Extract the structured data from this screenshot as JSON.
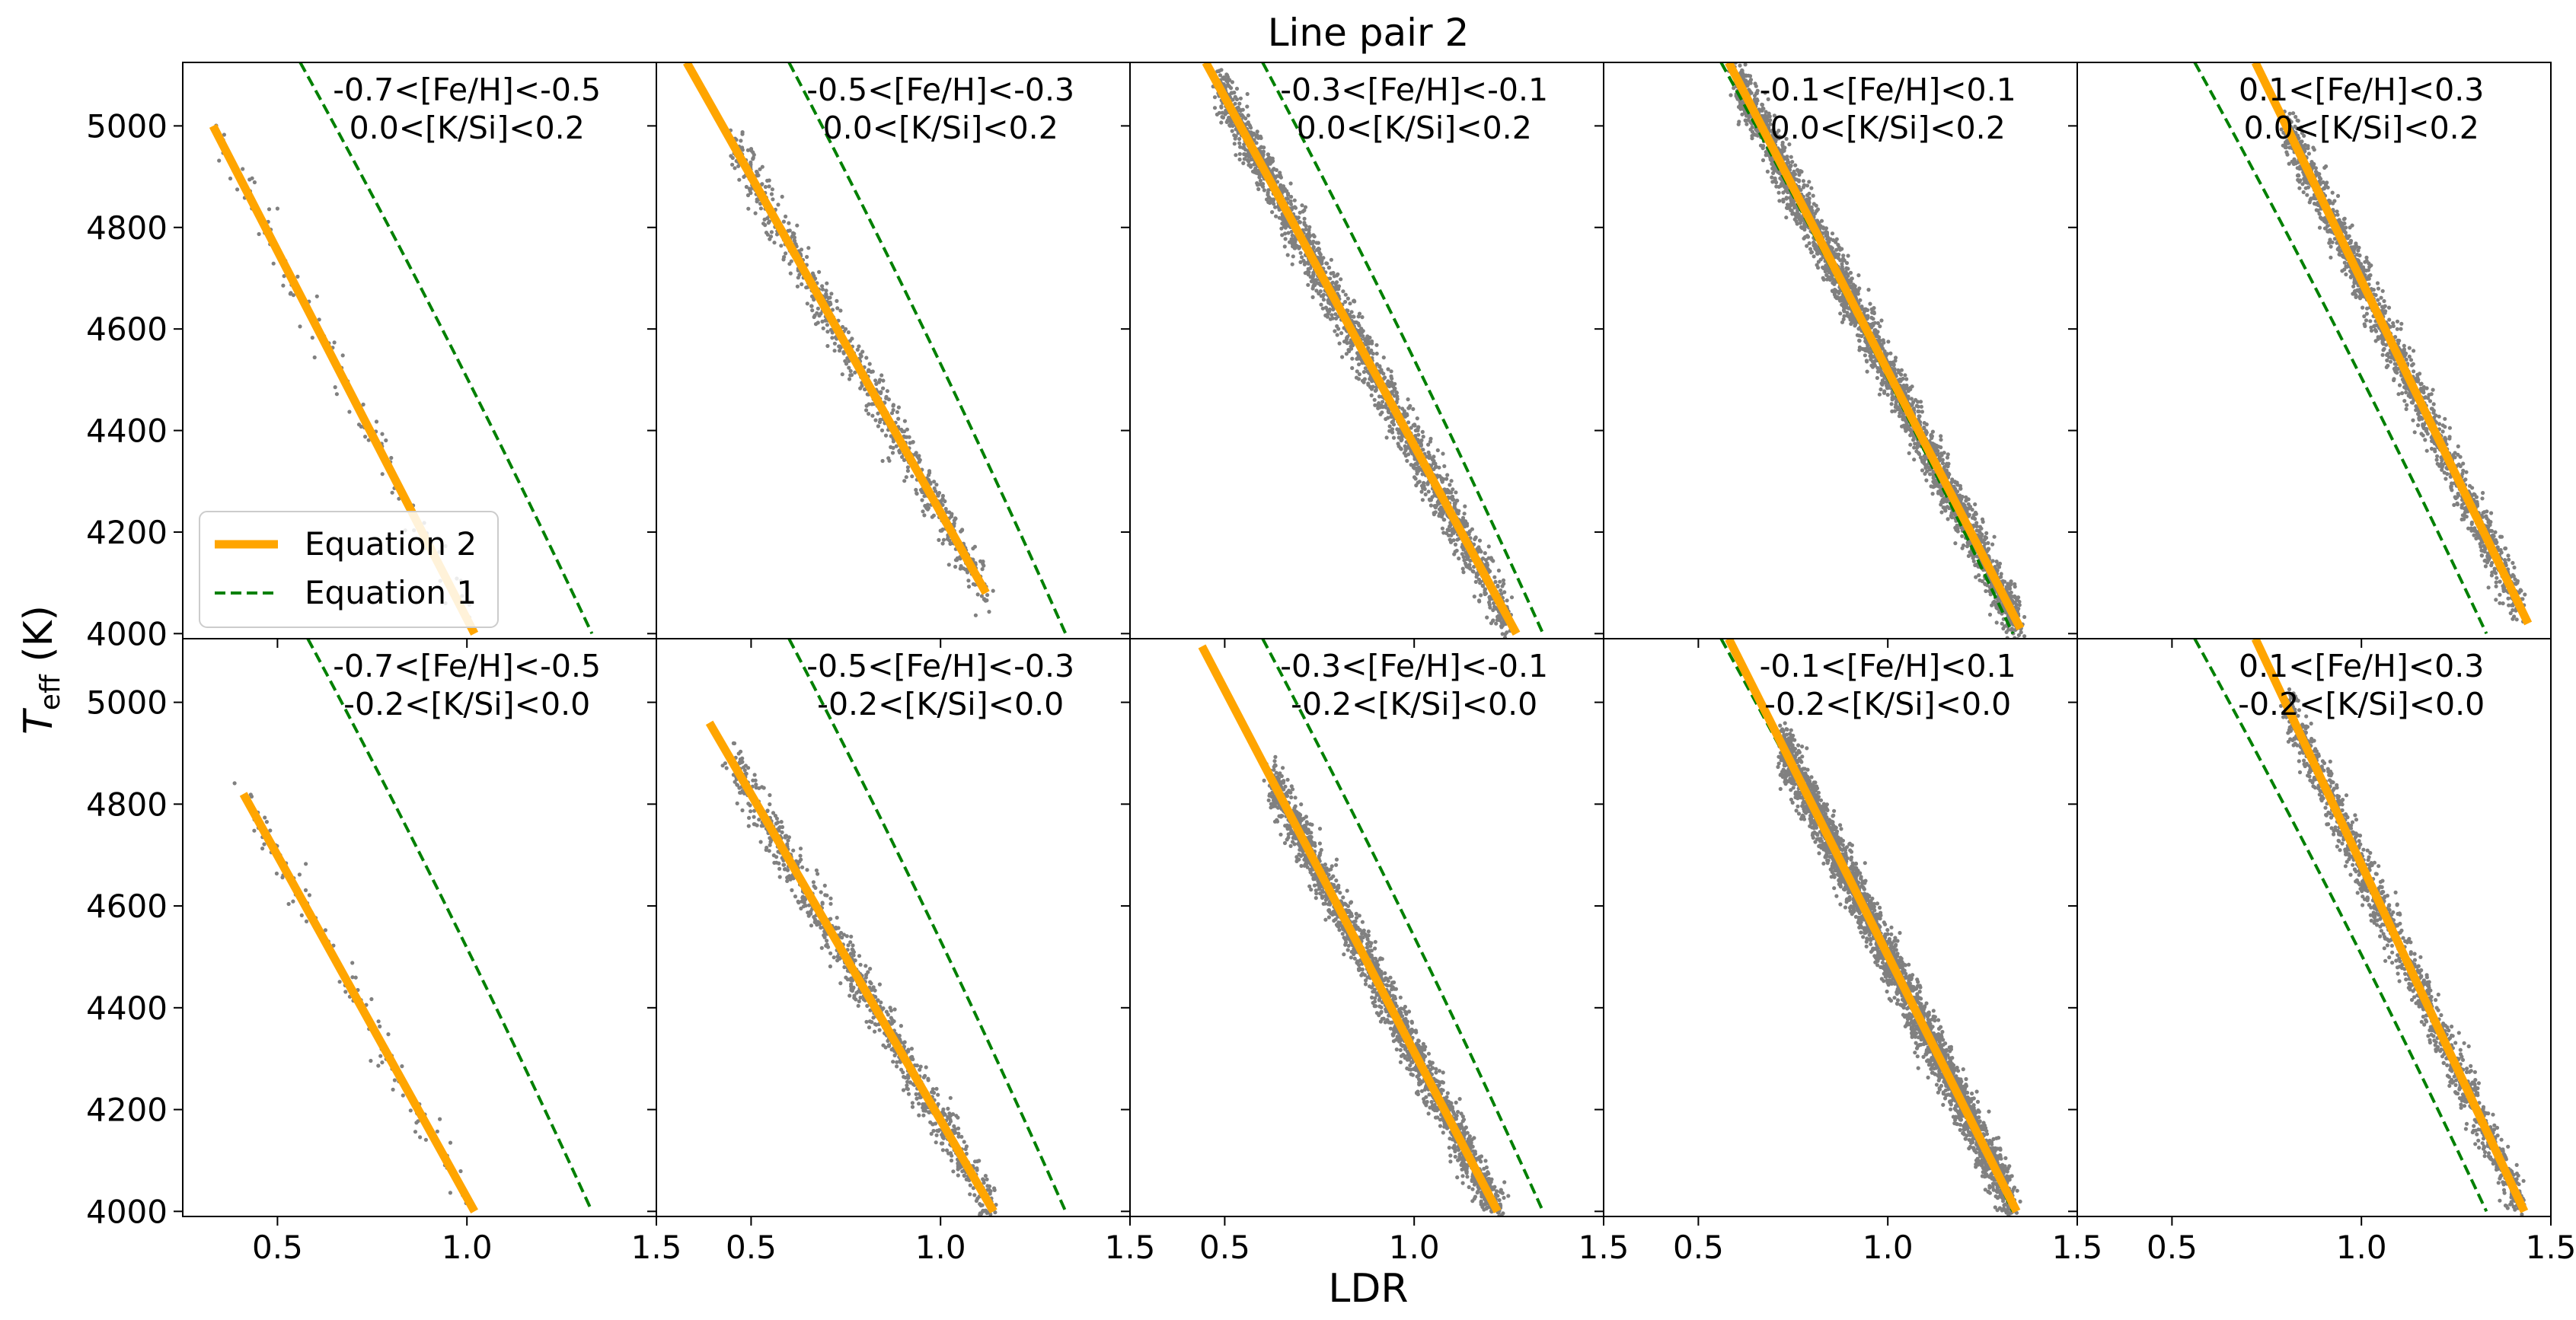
{
  "title": "Line pair 2",
  "xlabel": "LDR",
  "ylabel_main": "T",
  "ylabel_sub": "eff",
  "ylabel_unit": " (K)",
  "legend": [
    {
      "label": "Equation 2",
      "color": "#ffa500",
      "style": "solid"
    },
    {
      "label": "Equation 1",
      "color": "#008000",
      "style": "dashed"
    }
  ],
  "xticks": [
    "0.5",
    "1.0",
    "1.5"
  ],
  "yticks": [
    "4000",
    "4200",
    "4400",
    "4600",
    "4800",
    "5000"
  ],
  "chart_data": {
    "type": "scatter",
    "title": "Line pair 2",
    "xlabel": "LDR",
    "ylabel": "Teff (K)",
    "xlim": [
      0.25,
      1.5
    ],
    "ylim": [
      3990,
      5125
    ],
    "scatter_color": "#808080",
    "panels": [
      {
        "row": 0,
        "col": 0,
        "label1": "-0.7<[Fe/H]<-0.5",
        "label2": "0.0<[K/Si]<0.2",
        "eq2": [
          [
            0.33,
            5000
          ],
          [
            1.02,
            4000
          ]
        ],
        "eq1": [
          [
            0.56,
            5125
          ],
          [
            1.33,
            4000
          ]
        ],
        "n_points": 110,
        "ldr_range": [
          0.33,
          1.0
        ]
      },
      {
        "row": 0,
        "col": 1,
        "label1": "-0.5<[Fe/H]<-0.3",
        "label2": "0.0<[K/Si]<0.2",
        "eq2": [
          [
            0.33,
            5125
          ],
          [
            1.12,
            4080
          ]
        ],
        "eq1": [
          [
            0.6,
            5125
          ],
          [
            1.33,
            4000
          ]
        ],
        "n_points": 700,
        "ldr_range": [
          0.45,
          1.12
        ]
      },
      {
        "row": 0,
        "col": 2,
        "label1": "-0.3<[Fe/H]<-0.1",
        "label2": "0.0<[K/Si]<0.2",
        "eq2": [
          [
            0.45,
            5125
          ],
          [
            1.27,
            4000
          ]
        ],
        "eq1": [
          [
            0.6,
            5125
          ],
          [
            1.34,
            4000
          ]
        ],
        "n_points": 1900,
        "ldr_range": [
          0.48,
          1.25
        ]
      },
      {
        "row": 0,
        "col": 3,
        "label1": "-0.1<[Fe/H]<0.1",
        "label2": "0.0<[K/Si]<0.2",
        "eq2": [
          [
            0.58,
            5125
          ],
          [
            1.35,
            4010
          ]
        ],
        "eq1": [
          [
            0.56,
            5125
          ],
          [
            1.33,
            4000
          ]
        ],
        "n_points": 2600,
        "ldr_range": [
          0.6,
          1.35
        ]
      },
      {
        "row": 0,
        "col": 4,
        "label1": "0.1<[Fe/H]<0.3",
        "label2": "0.0<[K/Si]<0.2",
        "eq2": [
          [
            0.72,
            5125
          ],
          [
            1.44,
            4020
          ]
        ],
        "eq1": [
          [
            0.56,
            5125
          ],
          [
            1.33,
            4000
          ]
        ],
        "n_points": 1500,
        "ldr_range": [
          0.8,
          1.42
        ]
      },
      {
        "row": 1,
        "col": 0,
        "label1": "-0.7<[Fe/H]<-0.5",
        "label2": "-0.2<[K/Si]<0.0",
        "eq2": [
          [
            0.41,
            4820
          ],
          [
            1.02,
            4000
          ]
        ],
        "eq1": [
          [
            0.58,
            5125
          ],
          [
            1.33,
            4000
          ]
        ],
        "n_points": 110,
        "ldr_range": [
          0.41,
          1.0
        ]
      },
      {
        "row": 1,
        "col": 1,
        "label1": "-0.5<[Fe/H]<-0.3",
        "label2": "-0.2<[K/Si]<0.0",
        "eq2": [
          [
            0.39,
            4960
          ],
          [
            1.14,
            4000
          ]
        ],
        "eq1": [
          [
            0.6,
            5125
          ],
          [
            1.33,
            4000
          ]
        ],
        "n_points": 900,
        "ldr_range": [
          0.45,
          1.15
        ]
      },
      {
        "row": 1,
        "col": 2,
        "label1": "-0.3<[Fe/H]<-0.1",
        "label2": "-0.2<[K/Si]<0.0",
        "eq2": [
          [
            0.44,
            5110
          ],
          [
            1.22,
            4000
          ]
        ],
        "eq1": [
          [
            0.6,
            5125
          ],
          [
            1.34,
            4000
          ]
        ],
        "n_points": 1700,
        "ldr_range": [
          0.62,
          1.24
        ]
      },
      {
        "row": 1,
        "col": 3,
        "label1": "-0.1<[Fe/H]<0.1",
        "label2": "-0.2<[K/Si]<0.0",
        "eq2": [
          [
            0.58,
            5125
          ],
          [
            1.34,
            4000
          ]
        ],
        "eq1": [
          [
            0.56,
            5125
          ],
          [
            1.33,
            4000
          ]
        ],
        "n_points": 2800,
        "ldr_range": [
          0.72,
          1.33
        ]
      },
      {
        "row": 1,
        "col": 4,
        "label1": "0.1<[Fe/H]<0.3",
        "label2": "-0.2<[K/Si]<0.0",
        "eq2": [
          [
            0.72,
            5125
          ],
          [
            1.43,
            4000
          ]
        ],
        "eq1": [
          [
            0.56,
            5125
          ],
          [
            1.33,
            4000
          ]
        ],
        "n_points": 1300,
        "ldr_range": [
          0.8,
          1.42
        ]
      }
    ]
  }
}
